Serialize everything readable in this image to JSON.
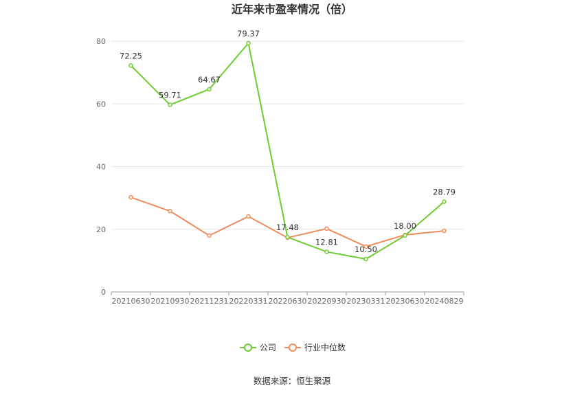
{
  "chart_data": {
    "type": "line",
    "title": "近年来市盈率情况（倍）",
    "categories": [
      "20210630",
      "20210930",
      "20211231",
      "20220331",
      "20220630",
      "20220930",
      "20230331",
      "20230630",
      "20240829"
    ],
    "series": [
      {
        "name": "公司",
        "color": "#6dcc2f",
        "values": [
          72.25,
          59.71,
          64.67,
          79.37,
          17.48,
          12.81,
          10.5,
          18.0,
          28.79
        ],
        "labels": [
          "72.25",
          "59.71",
          "64.67",
          "79.37",
          "17.48",
          "12.81",
          "10.50",
          "18.00",
          "28.79"
        ]
      },
      {
        "name": "行业中位数",
        "color": "#f08c5a",
        "values": [
          30.2,
          25.8,
          18.0,
          24.1,
          17.3,
          20.2,
          14.5,
          18.2,
          19.5
        ]
      }
    ],
    "ylim": [
      0,
      80
    ],
    "yticks": [
      "0",
      "20",
      "40",
      "60",
      "80"
    ],
    "grid": true,
    "legend_position": "bottom-center"
  },
  "source": "数据来源：恒生聚源"
}
